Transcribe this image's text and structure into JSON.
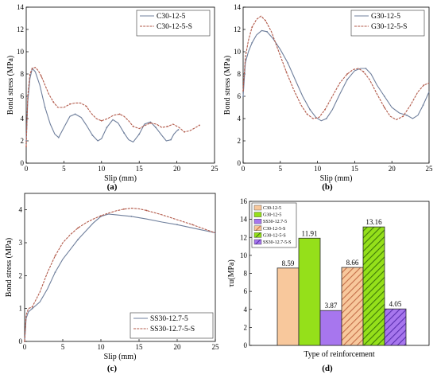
{
  "colors": {
    "blue": "#6f7f9c",
    "red": "#b25a4a",
    "c30": "#f8c89c",
    "g30": "#95e01a",
    "ss30": "#a776ee",
    "bar_edge": "#2b2b2b"
  },
  "chart_data": [
    {
      "id": "a",
      "type": "line",
      "panel_label": "(a)",
      "xlabel": "Slip (mm)",
      "ylabel": "Bond stress (MPa)",
      "xlim": [
        0,
        25
      ],
      "ylim": [
        0,
        14
      ],
      "xticks": [
        0,
        5,
        10,
        15,
        20,
        25
      ],
      "yticks": [
        0,
        2,
        4,
        6,
        8,
        10,
        12,
        14
      ],
      "legend": "top-right",
      "series": [
        {
          "name": "C30-12-5",
          "color_key": "blue",
          "x": [
            0,
            0.2,
            0.5,
            0.8,
            1.2,
            1.8,
            2.5,
            3.2,
            3.8,
            4.3,
            5.0,
            5.8,
            6.5,
            7.3,
            8.0,
            8.8,
            9.5,
            10.0,
            10.7,
            11.5,
            12.2,
            13.0,
            13.6,
            14.2,
            15.0,
            15.7,
            16.5,
            17.2,
            18.0,
            18.6,
            19.2,
            19.6,
            20.0,
            20.2
          ],
          "y": [
            2.0,
            5.5,
            7.6,
            8.5,
            8.2,
            7.0,
            5.0,
            3.5,
            2.6,
            2.3,
            3.2,
            4.2,
            4.4,
            4.1,
            3.4,
            2.5,
            2.0,
            2.2,
            3.2,
            3.9,
            3.6,
            2.7,
            2.1,
            1.9,
            2.6,
            3.5,
            3.7,
            3.2,
            2.5,
            2.0,
            2.1,
            2.6,
            2.9,
            3.0
          ]
        },
        {
          "name": "C30-12-5-S",
          "color_key": "red",
          "x": [
            0,
            0.2,
            0.5,
            0.8,
            1.2,
            1.6,
            2.0,
            2.5,
            3.0,
            3.6,
            4.2,
            5.0,
            5.8,
            6.5,
            7.2,
            8.0,
            8.6,
            9.3,
            10.0,
            10.8,
            11.6,
            12.4,
            13.0,
            13.6,
            14.2,
            15.0,
            15.8,
            16.5,
            17.3,
            18.0,
            18.8,
            19.5,
            20.3,
            21.0,
            21.7,
            22.5,
            23.0
          ],
          "y": [
            1.5,
            6.0,
            8.0,
            8.5,
            8.6,
            8.3,
            7.8,
            7.0,
            6.2,
            5.5,
            5.0,
            5.0,
            5.3,
            5.4,
            5.4,
            5.1,
            4.5,
            4.0,
            3.8,
            4.0,
            4.3,
            4.4,
            4.2,
            3.8,
            3.3,
            3.1,
            3.4,
            3.6,
            3.5,
            3.2,
            3.3,
            3.5,
            3.2,
            2.8,
            2.9,
            3.2,
            3.4
          ]
        }
      ]
    },
    {
      "id": "b",
      "type": "line",
      "panel_label": "(b)",
      "xlabel": "Slip (mm)",
      "ylabel": "Bond stress (MPa)",
      "xlim": [
        0,
        25
      ],
      "ylim": [
        0,
        14
      ],
      "xticks": [
        0,
        5,
        10,
        15,
        20,
        25
      ],
      "yticks": [
        0,
        2,
        4,
        6,
        8,
        10,
        12,
        14
      ],
      "legend": "top-right",
      "series": [
        {
          "name": "G30-12-5",
          "color_key": "blue",
          "x": [
            0,
            0.3,
            0.7,
            1.2,
            1.8,
            2.5,
            3.2,
            4.0,
            5.0,
            6.0,
            7.0,
            8.0,
            9.0,
            9.8,
            10.5,
            11.2,
            12.0,
            13.0,
            14.0,
            15.0,
            15.8,
            16.5,
            17.2,
            18.0,
            19.0,
            20.0,
            21.0,
            22.0,
            22.8,
            23.5,
            24.2,
            25.0
          ],
          "y": [
            6.0,
            9.0,
            10.0,
            10.8,
            11.5,
            11.9,
            11.8,
            11.2,
            10.2,
            9.0,
            7.5,
            6.0,
            4.8,
            4.1,
            3.8,
            4.0,
            4.8,
            6.2,
            7.5,
            8.3,
            8.5,
            8.5,
            8.0,
            7.0,
            6.0,
            5.0,
            4.5,
            4.3,
            4.0,
            4.3,
            5.2,
            6.4
          ]
        },
        {
          "name": "G30-12-5-S",
          "color_key": "red",
          "x": [
            0,
            0.3,
            0.7,
            1.2,
            1.8,
            2.4,
            3.0,
            3.8,
            4.8,
            5.8,
            6.8,
            7.8,
            8.6,
            9.4,
            10.2,
            11.0,
            12.0,
            13.0,
            14.0,
            14.8,
            15.5,
            16.2,
            17.0,
            18.0,
            19.0,
            19.8,
            20.6,
            21.5,
            22.5,
            23.5,
            24.3,
            25.0
          ],
          "y": [
            6.5,
            9.5,
            11.0,
            12.2,
            12.9,
            13.2,
            12.8,
            11.8,
            10.0,
            8.2,
            6.6,
            5.2,
            4.4,
            4.0,
            4.1,
            4.8,
            6.0,
            7.2,
            8.0,
            8.4,
            8.5,
            8.2,
            7.5,
            6.2,
            5.0,
            4.2,
            3.9,
            4.2,
            5.2,
            6.4,
            7.0,
            7.2
          ]
        }
      ]
    },
    {
      "id": "c",
      "type": "line",
      "panel_label": "(c)",
      "xlabel": "Slip (mm)",
      "ylabel": "Bond stress (MPa)",
      "xlim": [
        0,
        25
      ],
      "ylim": [
        0,
        4.5
      ],
      "xticks": [
        0,
        5,
        10,
        15,
        20,
        25
      ],
      "yticks": [
        0,
        1,
        2,
        3,
        4
      ],
      "legend": "bottom-right",
      "series": [
        {
          "name": "SS30-12.7-5",
          "color_key": "blue",
          "x": [
            0,
            0.2,
            0.5,
            1,
            2,
            3,
            4,
            5,
            6,
            7,
            8,
            9,
            10,
            11,
            12,
            14,
            16,
            18,
            20,
            22,
            24,
            25
          ],
          "y": [
            0.0,
            0.7,
            0.9,
            1.0,
            1.2,
            1.6,
            2.1,
            2.5,
            2.8,
            3.1,
            3.35,
            3.6,
            3.8,
            3.87,
            3.85,
            3.8,
            3.72,
            3.63,
            3.55,
            3.45,
            3.35,
            3.3
          ]
        },
        {
          "name": "SS30-12.7-5-S",
          "color_key": "red",
          "x": [
            0,
            0.2,
            0.5,
            1,
            2,
            3,
            4,
            5,
            6,
            7,
            8,
            9,
            10,
            11,
            12,
            13,
            14,
            15,
            16,
            18,
            20,
            22,
            24,
            25
          ],
          "y": [
            0.0,
            0.8,
            1.0,
            1.05,
            1.5,
            2.1,
            2.6,
            3.0,
            3.25,
            3.45,
            3.6,
            3.72,
            3.82,
            3.9,
            3.97,
            4.02,
            4.05,
            4.03,
            3.98,
            3.85,
            3.7,
            3.55,
            3.38,
            3.3
          ]
        }
      ]
    },
    {
      "id": "d",
      "type": "bar",
      "panel_label": "(d)",
      "xlabel": "Type of reinforcement",
      "ylabel": "τu(MPa)",
      "ylim": [
        0,
        16
      ],
      "yticks": [
        0,
        2,
        4,
        6,
        8,
        10,
        12,
        14,
        16
      ],
      "legend": "top-left",
      "categories": [
        "C30-12-5",
        "G30-12-5",
        "SS30-12.7-5",
        "C30-12-5-S",
        "G30-12-5-S",
        "SS30-12.7-5-S"
      ],
      "values": [
        8.59,
        11.91,
        3.87,
        8.66,
        13.16,
        4.05
      ],
      "value_labels": [
        "8.59",
        "11.91",
        "3.87",
        "8.66",
        "13.16",
        "4.05"
      ],
      "bar_colors": [
        "c30",
        "g30",
        "ss30",
        "c30",
        "g30",
        "ss30"
      ],
      "hatched": [
        false,
        false,
        false,
        true,
        true,
        true
      ]
    }
  ]
}
